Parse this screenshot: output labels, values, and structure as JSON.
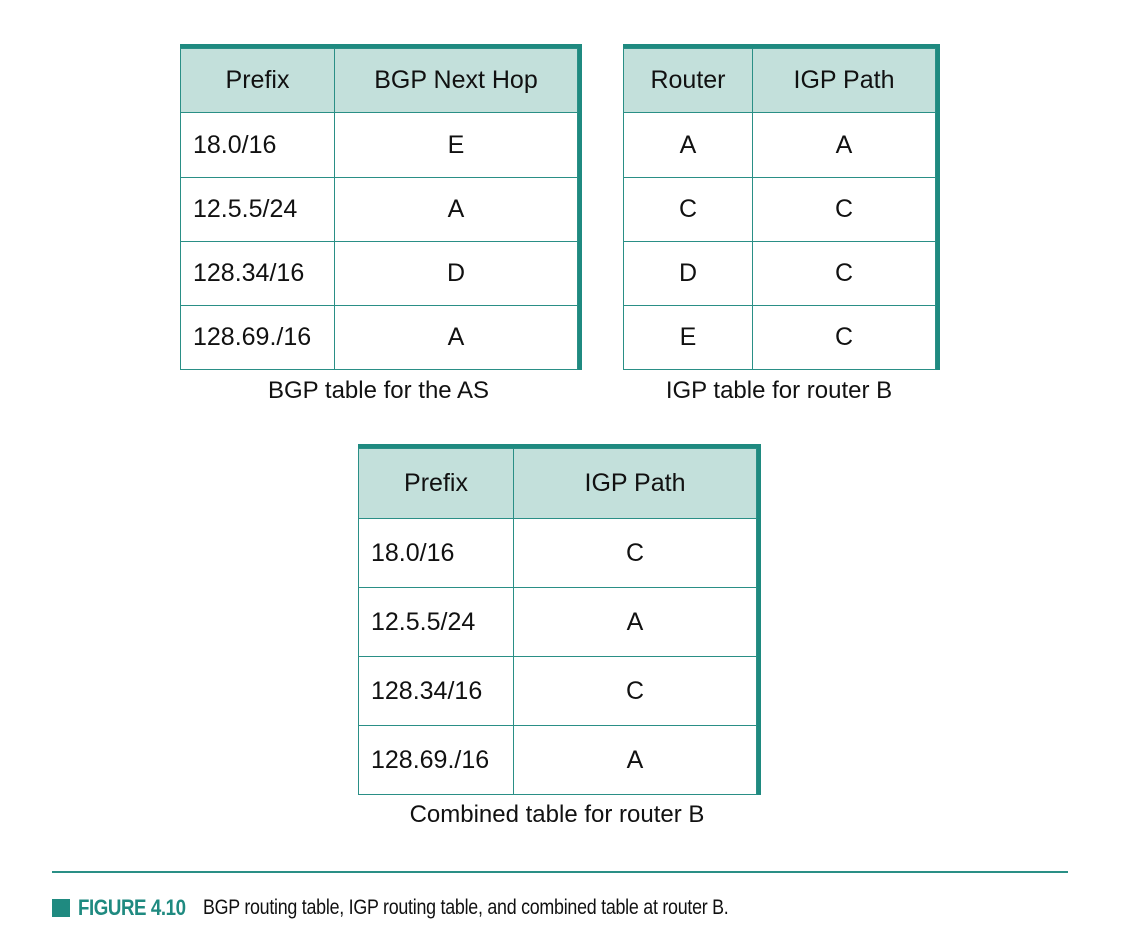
{
  "bgp_table": {
    "headers": [
      "Prefix",
      "BGP Next Hop"
    ],
    "rows": [
      [
        "18.0/16",
        "E"
      ],
      [
        "12.5.5/24",
        "A"
      ],
      [
        "128.34/16",
        "D"
      ],
      [
        "128.69./16",
        "A"
      ]
    ],
    "caption": "BGP table for the AS"
  },
  "igp_table": {
    "headers": [
      "Router",
      "IGP Path"
    ],
    "rows": [
      [
        "A",
        "A"
      ],
      [
        "C",
        "C"
      ],
      [
        "D",
        "C"
      ],
      [
        "E",
        "C"
      ]
    ],
    "caption": "IGP table for router B"
  },
  "combined_table": {
    "headers": [
      "Prefix",
      "IGP Path"
    ],
    "rows": [
      [
        "18.0/16",
        "C"
      ],
      [
        "12.5.5/24",
        "A"
      ],
      [
        "128.34/16",
        "C"
      ],
      [
        "128.69./16",
        "A"
      ]
    ],
    "caption": "Combined table for router B"
  },
  "figure": {
    "label": "FIGURE 4.10",
    "text": "BGP routing table, IGP routing table, and combined table at router B."
  },
  "colors": {
    "accent": "#1f8a80",
    "header_fill": "#c3e0db",
    "border": "#2a8f86"
  }
}
